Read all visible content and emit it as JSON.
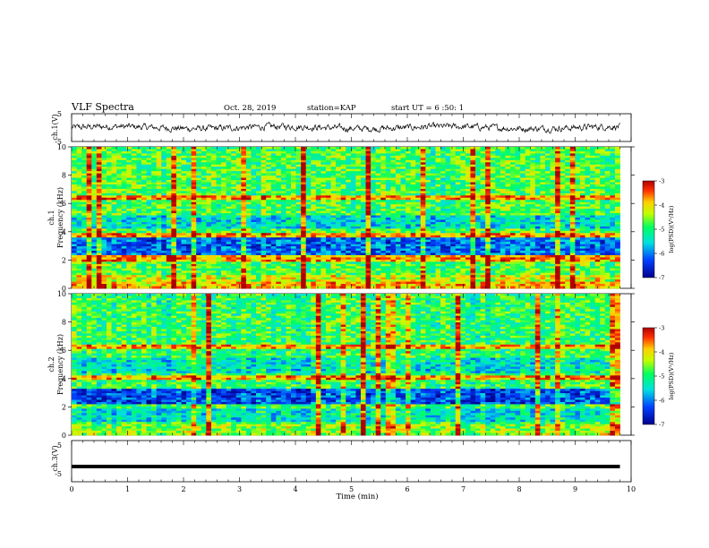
{
  "header": {
    "title": "VLF Spectra",
    "date": "Oct. 28, 2019",
    "station": "station=KAP",
    "start_ut": "start UT =  6 :50: 1"
  },
  "colors": {
    "spectrum_low": "#1500b0",
    "spectrum_mid": "#00e0c0",
    "spectrum_high": "#e00000",
    "trace": "#000000",
    "frame": "#000000",
    "background": "#ffffff"
  },
  "chart_data": [
    {
      "type": "line",
      "id": "ch1-waveform",
      "ylabel": "ch.1(V)",
      "ylim": [
        -5,
        5
      ],
      "yticks": [
        "5",
        "-5"
      ],
      "xlim": [
        0,
        10
      ],
      "note_values": "noisy waveform fluctuating roughly between -1.5 and 1.5 V over 0–9.8 min"
    },
    {
      "type": "heatmap",
      "id": "ch1-spectrogram",
      "ylabel": "ch.1\nFrequency (kHz)",
      "ylim": [
        0,
        10
      ],
      "yticks": [
        "0",
        "2",
        "4",
        "6",
        "8",
        "10"
      ],
      "xlim": [
        0,
        9.8
      ],
      "colorbar": {
        "label": "log(PSD)(V²/Hz)",
        "range": [
          -7,
          -3
        ],
        "ticks": [
          "-3",
          "-4",
          "-5",
          "-6",
          "-7"
        ]
      }
    },
    {
      "type": "heatmap",
      "id": "ch2-spectrogram",
      "ylabel": "ch.2\nFrequency (kHz)",
      "ylim": [
        0,
        10
      ],
      "yticks": [
        "0",
        "2",
        "4",
        "6",
        "8",
        "10"
      ],
      "xlim": [
        0,
        9.8
      ],
      "colorbar": {
        "label": "log(PSD)(V²/Hz)",
        "range": [
          -7,
          -3
        ],
        "ticks": [
          "-3",
          "-4",
          "-5",
          "-6",
          "-7"
        ]
      }
    },
    {
      "type": "line",
      "id": "ch3-waveform",
      "ylabel": "ch.3(V)",
      "ylim": [
        -5,
        5
      ],
      "yticks": [
        "5",
        "-5"
      ],
      "xlim": [
        0,
        10
      ],
      "value": -1.3
    }
  ],
  "x_axis": {
    "label": "Time (min)",
    "ticks": [
      "0",
      "1",
      "2",
      "3",
      "4",
      "5",
      "6",
      "7",
      "8",
      "9",
      "10"
    ],
    "range": [
      0,
      10
    ]
  }
}
